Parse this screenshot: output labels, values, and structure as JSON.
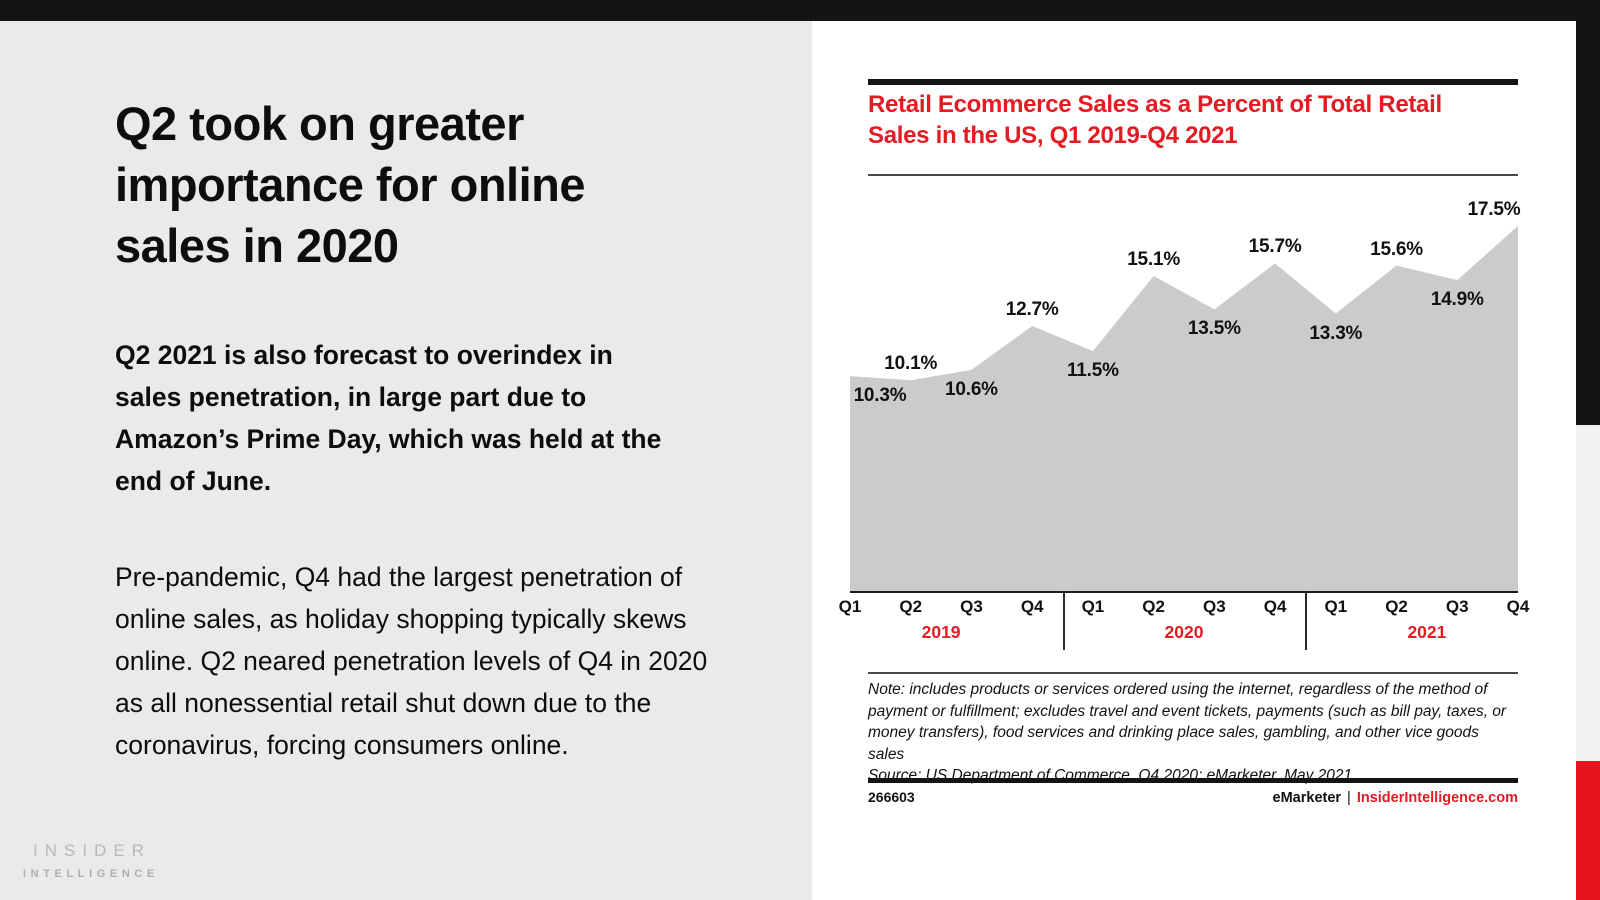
{
  "left_panel": {
    "headline": "Q2 took on greater importance for online sales in 2020",
    "paragraph_bold": "Q2 2021 is also forecast to overindex in sales penetration, in large part due to Amazon’s Prime Day, which was held at the end of June.",
    "paragraph_regular": "Pre-pandemic, Q4 had the largest penetration of online sales, as holiday shopping typically skews online. Q2 neared penetration levels of Q4 in 2020 as all nonessential retail shut down due to the coronavirus, forcing consumers online.",
    "logo_line1": "INSIDER",
    "logo_line2": "INTELLIGENCE"
  },
  "chart": {
    "note": "Note: includes products or services ordered using the internet, regardless of the method of payment or fulfillment; excludes travel and event tickets, payments (such as bill pay, taxes, or money transfers), food services and drinking place sales, gambling, and other vice goods sales",
    "source": "Source: US Department of Commerce, Q4 2020; eMarketer, May 2021",
    "chart_id": "266603",
    "brand_left": "eMarketer",
    "brand_separator": "|",
    "brand_right": "InsiderIntelligence.com"
  },
  "chart_data": {
    "type": "area",
    "title": "Retail Ecommerce Sales as a Percent of Total Retail Sales in the US, Q1 2019-Q4 2021",
    "title_lines": [
      "Retail Ecommerce Sales as a Percent of Total Retail",
      "Sales in the US, Q1 2019-Q4 2021"
    ],
    "categories": [
      "Q1 2019",
      "Q2 2019",
      "Q3 2019",
      "Q4 2019",
      "Q1 2020",
      "Q2 2020",
      "Q3 2020",
      "Q4 2020",
      "Q1 2021",
      "Q2 2021",
      "Q3 2021",
      "Q4 2021"
    ],
    "values": [
      10.3,
      10.1,
      10.6,
      12.7,
      11.5,
      15.1,
      13.5,
      15.7,
      13.3,
      15.6,
      14.9,
      17.5
    ],
    "point_labels": [
      "10.3%",
      "10.1%",
      "10.6%",
      "12.7%",
      "11.5%",
      "15.1%",
      "13.5%",
      "15.7%",
      "13.3%",
      "15.6%",
      "14.9%",
      "17.5%"
    ],
    "x_tick_labels": [
      "Q1",
      "Q2",
      "Q3",
      "Q4",
      "Q1",
      "Q2",
      "Q3",
      "Q4",
      "Q1",
      "Q2",
      "Q3",
      "Q4"
    ],
    "year_groups": [
      "2019",
      "2020",
      "2021"
    ],
    "unit": "%",
    "ylim": [
      0,
      18.55
    ],
    "grid": false,
    "legend": false,
    "area_fill": "#cbcbcb"
  },
  "colors": {
    "accent_red": "#e31b23",
    "strip_red": "#e8131d",
    "bar_black": "#141414",
    "left_panel_bg": "#eaeaea",
    "strip_gray": "#f2f2f2",
    "area_fill": "#cbcbcb",
    "logo_gray": "#b9b9b9"
  }
}
